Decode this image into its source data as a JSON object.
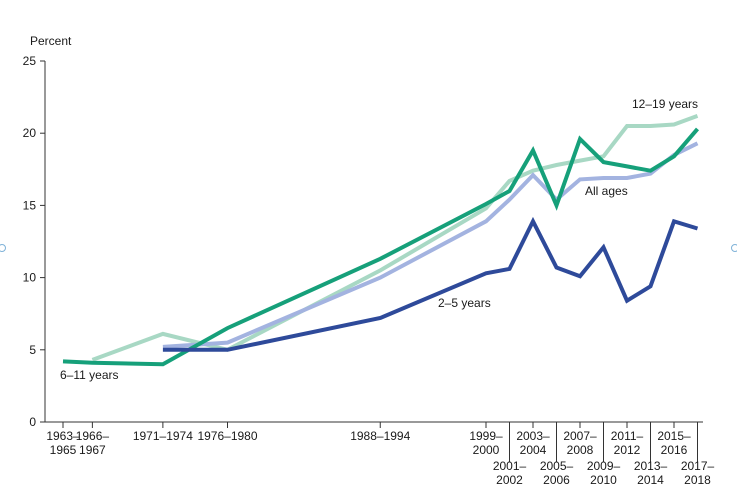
{
  "chart_data": {
    "type": "line",
    "ylabel": "Percent",
    "ylim": [
      0,
      25
    ],
    "yticks": [
      "0",
      "5",
      "10",
      "15",
      "20",
      "25"
    ],
    "grid": false,
    "x_categories": [
      {
        "line1": "1963–",
        "line2": "1965",
        "x": 1964,
        "row": 1
      },
      {
        "line1": "1966–",
        "line2": "1967",
        "x": 1966.5,
        "row": 1
      },
      {
        "line1": "1971–1974",
        "line2": "",
        "x": 1972.5,
        "row": 1
      },
      {
        "line1": "1976–1980",
        "line2": "",
        "x": 1978,
        "row": 1
      },
      {
        "line1": "1988–1994",
        "line2": "",
        "x": 1991,
        "row": 1
      },
      {
        "line1": "1999–",
        "line2": "2000",
        "x": 2000,
        "row": 1
      },
      {
        "line1": "2001–",
        "line2": "2002",
        "x": 2002,
        "row": 2
      },
      {
        "line1": "2003–",
        "line2": "2004",
        "x": 2004,
        "row": 1
      },
      {
        "line1": "2005–",
        "line2": "2006",
        "x": 2006,
        "row": 2
      },
      {
        "line1": "2007–",
        "line2": "2008",
        "x": 2008,
        "row": 1
      },
      {
        "line1": "2009–",
        "line2": "2010",
        "x": 2010,
        "row": 2
      },
      {
        "line1": "2011–",
        "line2": "2012",
        "x": 2012,
        "row": 1
      },
      {
        "line1": "2013–",
        "line2": "2014",
        "x": 2014,
        "row": 2
      },
      {
        "line1": "2015–",
        "line2": "2016",
        "x": 2016,
        "row": 1
      },
      {
        "line1": "2017–",
        "line2": "2018",
        "x": 2018,
        "row": 2
      }
    ],
    "series": [
      {
        "name": "6–11 years",
        "color": "#16a07a",
        "points": [
          [
            1964,
            4.2
          ],
          [
            1966.5,
            4.1
          ],
          [
            1972.5,
            4.0
          ],
          [
            1978,
            6.5
          ],
          [
            1991,
            11.3
          ],
          [
            2000,
            15.1
          ],
          [
            2002,
            16.0
          ],
          [
            2004,
            18.8
          ],
          [
            2006,
            15.0
          ],
          [
            2008,
            19.6
          ],
          [
            2010,
            18.0
          ],
          [
            2012,
            17.7
          ],
          [
            2014,
            17.4
          ],
          [
            2016,
            18.4
          ],
          [
            2018,
            20.3
          ]
        ]
      },
      {
        "name": "12–19 years",
        "color": "#a8d8c4",
        "points": [
          [
            1966.5,
            4.3
          ],
          [
            1972.5,
            6.1
          ],
          [
            1978,
            5.0
          ],
          [
            1991,
            10.5
          ],
          [
            2000,
            14.8
          ],
          [
            2002,
            16.7
          ],
          [
            2004,
            17.4
          ],
          [
            2006,
            17.8
          ],
          [
            2008,
            18.1
          ],
          [
            2010,
            18.4
          ],
          [
            2012,
            20.5
          ],
          [
            2014,
            20.5
          ],
          [
            2016,
            20.6
          ],
          [
            2018,
            21.2
          ]
        ]
      },
      {
        "name": "All ages",
        "color": "#a3b3e0",
        "points": [
          [
            1972.5,
            5.2
          ],
          [
            1978,
            5.5
          ],
          [
            1991,
            10.0
          ],
          [
            2000,
            13.9
          ],
          [
            2002,
            15.4
          ],
          [
            2004,
            17.1
          ],
          [
            2006,
            15.4
          ],
          [
            2008,
            16.8
          ],
          [
            2010,
            16.9
          ],
          [
            2012,
            16.9
          ],
          [
            2014,
            17.2
          ],
          [
            2016,
            18.5
          ],
          [
            2018,
            19.3
          ]
        ]
      },
      {
        "name": "2–5 years",
        "color": "#2e4a9a",
        "points": [
          [
            1972.5,
            5.0
          ],
          [
            1978,
            5.0
          ],
          [
            1991,
            7.2
          ],
          [
            2000,
            10.3
          ],
          [
            2002,
            10.6
          ],
          [
            2004,
            13.9
          ],
          [
            2006,
            10.7
          ],
          [
            2008,
            10.1
          ],
          [
            2010,
            12.1
          ],
          [
            2012,
            8.4
          ],
          [
            2014,
            9.4
          ],
          [
            2016,
            13.9
          ],
          [
            2018,
            13.4
          ]
        ]
      }
    ],
    "annotations": [
      "6–11 years",
      "12–19 years",
      "All ages",
      "2–5 years"
    ]
  }
}
